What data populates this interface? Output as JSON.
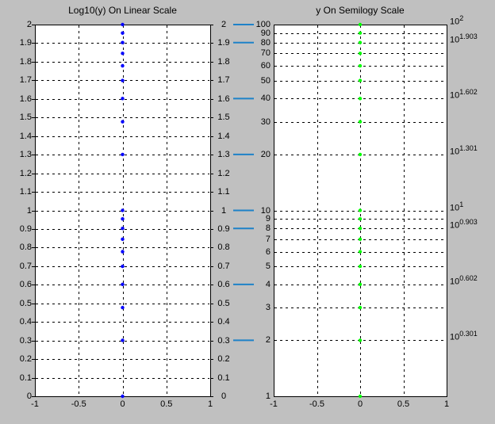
{
  "figure": {
    "bg_color": "#c0c0c0",
    "plot_bg_color": "#ffffff",
    "axis_color": "#000000",
    "grid_color": "#000000"
  },
  "link_annotations": {
    "color": "#1e82c8",
    "pairs": [
      {
        "linear_label": "2",
        "log_label": "100",
        "value": 100
      },
      {
        "linear_label": "1.9",
        "log_label": "80",
        "value": 80
      },
      {
        "linear_label": "1.6",
        "log_label": "40",
        "value": 40
      },
      {
        "linear_label": "1.3",
        "log_label": "20",
        "value": 20
      },
      {
        "linear_label": "1",
        "log_label": "10",
        "value": 10
      },
      {
        "linear_label": "0.9",
        "log_label": "8",
        "value": 8
      },
      {
        "linear_label": "0.6",
        "log_label": "4",
        "value": 4
      },
      {
        "linear_label": "0.3",
        "log_label": "2",
        "value": 2
      }
    ]
  },
  "chart_data": [
    {
      "type": "scatter",
      "title": "Log10(y) On Linear Scale",
      "yscale": "linear",
      "marker": "point",
      "marker_color": "#0000ff",
      "x": [
        0,
        0,
        0,
        0,
        0,
        0,
        0,
        0,
        0,
        0,
        0,
        0,
        0,
        0,
        0,
        0,
        0,
        0,
        0
      ],
      "y": [
        0,
        0.301,
        0.4771,
        0.6021,
        0.699,
        0.7782,
        0.8451,
        0.9031,
        0.9542,
        1,
        1.301,
        1.4771,
        1.6021,
        1.699,
        1.7782,
        1.8451,
        1.9031,
        1.9542,
        2
      ],
      "xlim": [
        -1,
        1
      ],
      "ylim": [
        0,
        2
      ],
      "grid": true,
      "x_tick_values": [
        -1,
        -0.5,
        0,
        0.5,
        1
      ],
      "x_tick_labels": [
        "-1",
        "-0.5",
        "0",
        "0.5",
        "1"
      ],
      "y_tick_values": [
        0,
        0.1,
        0.2,
        0.3,
        0.4,
        0.5,
        0.6,
        0.7,
        0.8,
        0.9,
        1,
        1.1,
        1.2,
        1.3,
        1.4,
        1.5,
        1.6,
        1.7,
        1.8,
        1.9,
        2
      ],
      "y_tick_labels": [
        "0",
        "0.1",
        "0.2",
        "0.3",
        "0.4",
        "0.5",
        "0.6",
        "0.7",
        "0.8",
        "0.9",
        "1",
        "1.1",
        "1.2",
        "1.3",
        "1.4",
        "1.5",
        "1.6",
        "1.7",
        "1.8",
        "1.9",
        "2"
      ],
      "y_labels_mirrored": true,
      "x_grid_values": [
        -0.5,
        0,
        0.5
      ],
      "y_grid_values": [
        0.1,
        0.2,
        0.3,
        0.4,
        0.5,
        0.6,
        0.7,
        0.8,
        0.9,
        1,
        1.1,
        1.2,
        1.3,
        1.4,
        1.5,
        1.6,
        1.7,
        1.8,
        1.9
      ]
    },
    {
      "type": "scatter",
      "title": "y On Semilogy Scale",
      "yscale": "log",
      "marker": "point",
      "marker_color": "#00ff00",
      "x": [
        0,
        0,
        0,
        0,
        0,
        0,
        0,
        0,
        0,
        0,
        0,
        0,
        0,
        0,
        0,
        0,
        0,
        0,
        0
      ],
      "y": [
        1,
        2,
        3,
        4,
        5,
        6,
        7,
        8,
        9,
        10,
        20,
        30,
        40,
        50,
        60,
        70,
        80,
        90,
        100
      ],
      "xlim": [
        -1,
        1
      ],
      "ylim": [
        1,
        100
      ],
      "grid": true,
      "x_tick_values": [
        -1,
        -0.5,
        0,
        0.5,
        1
      ],
      "x_tick_labels": [
        "-1",
        "-0.5",
        "0",
        "0.5",
        "1"
      ],
      "y_tick_values": [
        1,
        2,
        3,
        4,
        5,
        6,
        7,
        8,
        9,
        10,
        20,
        30,
        40,
        50,
        60,
        70,
        80,
        90,
        100
      ],
      "y_tick_labels": [
        "1",
        "2",
        "3",
        "4",
        "5",
        "6",
        "7",
        "8",
        "9",
        "10",
        "20",
        "30",
        "40",
        "50",
        "60",
        "70",
        "80",
        "90",
        "100"
      ],
      "x_grid_values": [
        -0.5,
        0,
        0.5
      ],
      "y_grid_values": [
        2,
        3,
        4,
        5,
        6,
        7,
        8,
        9,
        10,
        20,
        30,
        40,
        50,
        60,
        70,
        80,
        90
      ],
      "right_axis_power_labels": [
        {
          "base": "10",
          "exponent": "2",
          "value": 100
        },
        {
          "base": "10",
          "exponent": "1.903",
          "value": 80
        },
        {
          "base": "10",
          "exponent": "1.602",
          "value": 40
        },
        {
          "base": "10",
          "exponent": "1.301",
          "value": 20
        },
        {
          "base": "10",
          "exponent": "1",
          "value": 10
        },
        {
          "base": "10",
          "exponent": "0.903",
          "value": 8
        },
        {
          "base": "10",
          "exponent": "0.602",
          "value": 4
        },
        {
          "base": "10",
          "exponent": "0.301",
          "value": 2
        }
      ]
    }
  ]
}
